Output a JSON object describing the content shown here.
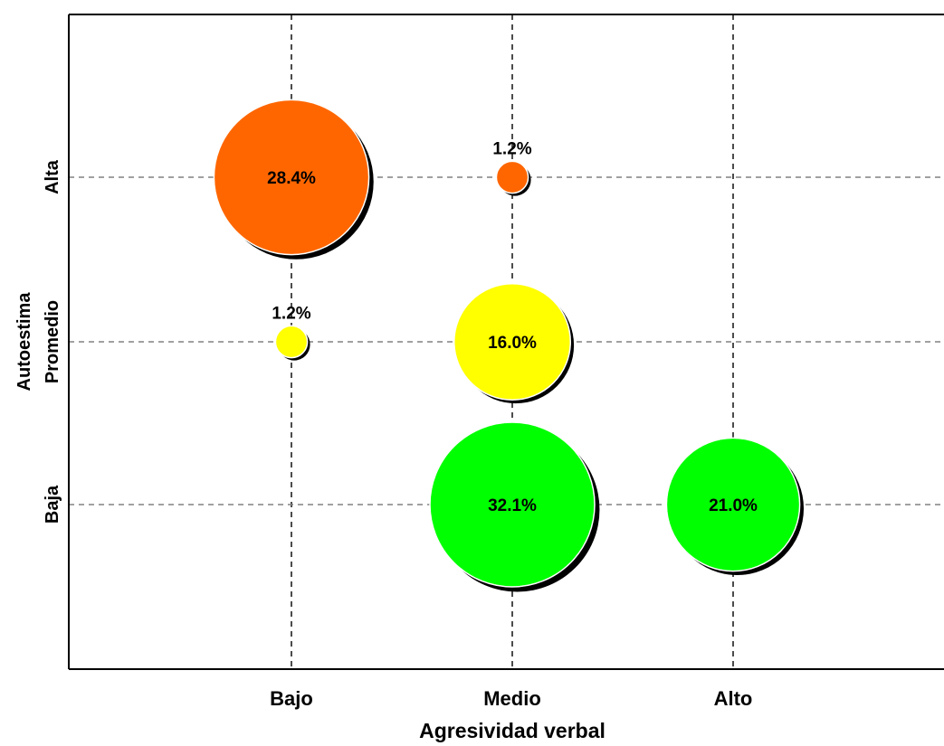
{
  "chart_data": {
    "type": "scatter",
    "subtype": "bubble",
    "x_categories": [
      "Bajo",
      "Medio",
      "Alto"
    ],
    "y_categories": [
      "Baja",
      "Promedio",
      "Alta"
    ],
    "xlabel": "Agresividad verbal",
    "ylabel": "Autoestima",
    "grid": true,
    "grid_style": "dashed",
    "legend": "none",
    "colors": {
      "Alta": "#ff6600",
      "Promedio": "#ffff00",
      "Baja": "#00ff00",
      "shadow": "#000000"
    },
    "points": [
      {
        "x": "Bajo",
        "y": "Alta",
        "value": 28.4,
        "label": "28.4%"
      },
      {
        "x": "Medio",
        "y": "Alta",
        "value": 1.2,
        "label": "1.2%"
      },
      {
        "x": "Bajo",
        "y": "Promedio",
        "value": 1.2,
        "label": "1.2%"
      },
      {
        "x": "Medio",
        "y": "Promedio",
        "value": 16.0,
        "label": "16.0%"
      },
      {
        "x": "Medio",
        "y": "Baja",
        "value": 32.1,
        "label": "32.1%"
      },
      {
        "x": "Alto",
        "y": "Baja",
        "value": 21.0,
        "label": "21.0%"
      }
    ]
  }
}
